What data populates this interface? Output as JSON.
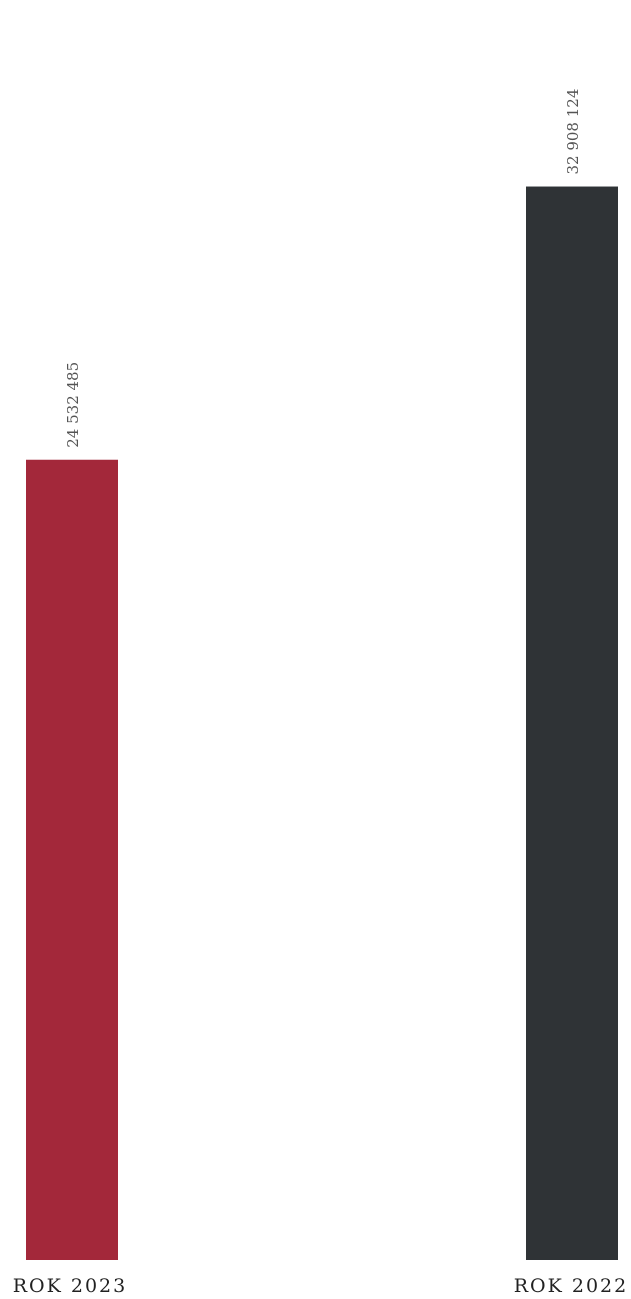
{
  "chart_data": {
    "type": "bar",
    "categories": [
      "ROK 2023",
      "ROK 2022"
    ],
    "values": [
      24532485,
      32908124
    ],
    "value_labels": [
      "24 532 485",
      "32 908 124"
    ],
    "colors": [
      "#a3283a",
      "#2f3336"
    ],
    "title": "",
    "xlabel": "",
    "ylabel": "",
    "ylim": [
      0,
      37400000
    ],
    "grid": false,
    "legend": "none"
  }
}
